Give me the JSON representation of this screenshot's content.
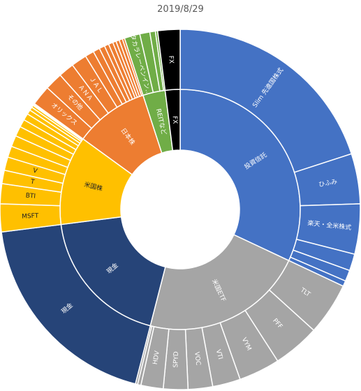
{
  "chart_data": {
    "type": "sunburst",
    "title": "2019/8/29",
    "colors": {
      "toushin": "#4472C4",
      "beikoku_etf": "#A5A5A5",
      "genkin": "#264478",
      "beikoku_kabu": "#FFC000",
      "nihon_kabu": "#ED7D31",
      "reit": "#70AD47",
      "fx": "#000000",
      "border": "#FFFFFF"
    },
    "inner": [
      {
        "label": "投資信託",
        "value": 32.0,
        "color_key": "toushin"
      },
      {
        "label": "米国ETF",
        "value": 22.0,
        "color_key": "beikoku_etf"
      },
      {
        "label": "現金",
        "value": 19.0,
        "color_key": "genkin"
      },
      {
        "label": "米国株",
        "value": 12.0,
        "color_key": "beikoku_kabu"
      },
      {
        "label": "日本株",
        "value": 10.0,
        "color_key": "nihon_kabu"
      },
      {
        "label": "REITなど",
        "value": 3.0,
        "color_key": "reit"
      },
      {
        "label": "FX",
        "value": 2.0,
        "color_key": "fx"
      }
    ],
    "outer": [
      {
        "label": "Slim 先進国株式",
        "value": 20.0,
        "parent": "投資信託"
      },
      {
        "label": "ひふみ",
        "value": 4.5,
        "parent": "投資信託"
      },
      {
        "label": "楽天・全米株式",
        "value": 4.5,
        "parent": "投資信託"
      },
      {
        "label": "",
        "value": 1.5,
        "parent": "投資信託"
      },
      {
        "label": "",
        "value": 1.0,
        "parent": "投資信託"
      },
      {
        "label": "",
        "value": 0.5,
        "parent": "投資信託"
      },
      {
        "label": "TLT",
        "value": 4.7,
        "parent": "米国ETF"
      },
      {
        "label": "PFF",
        "value": 4.2,
        "parent": "米国ETF"
      },
      {
        "label": "VYM",
        "value": 3.7,
        "parent": "米国ETF"
      },
      {
        "label": "VTI",
        "value": 2.5,
        "parent": "米国ETF"
      },
      {
        "label": "VOC",
        "value": 2.2,
        "parent": "米国ETF"
      },
      {
        "label": "SPYD",
        "value": 2.2,
        "parent": "米国ETF"
      },
      {
        "label": "HDV",
        "value": 2.0,
        "parent": "米国ETF"
      },
      {
        "label": "",
        "value": 0.3,
        "parent": "米国ETF"
      },
      {
        "label": "",
        "value": 0.2,
        "parent": "米国ETF"
      },
      {
        "label": "現金",
        "value": 19.0,
        "parent": "現金"
      },
      {
        "label": "MSFT",
        "value": 2.5,
        "parent": "米国株"
      },
      {
        "label": "BTI",
        "value": 1.8,
        "parent": "米国株"
      },
      {
        "label": "T",
        "value": 1.2,
        "parent": "米国株"
      },
      {
        "label": "V",
        "value": 1.2,
        "parent": "米国株"
      },
      {
        "label": "",
        "value": 1.0,
        "parent": "米国株"
      },
      {
        "label": "",
        "value": 1.0,
        "parent": "米国株"
      },
      {
        "label": "",
        "value": 0.9,
        "parent": "米国株"
      },
      {
        "label": "",
        "value": 0.7,
        "parent": "米国株"
      },
      {
        "label": "",
        "value": 0.6,
        "parent": "米国株"
      },
      {
        "label": "",
        "value": 0.4,
        "parent": "米国株"
      },
      {
        "label": "",
        "value": 0.3,
        "parent": "米国株"
      },
      {
        "label": "",
        "value": 0.2,
        "parent": "米国株"
      },
      {
        "label": "",
        "value": 0.1,
        "parent": "米国株"
      },
      {
        "label": "",
        "value": 0.1,
        "parent": "米国株"
      },
      {
        "label": "オリックス",
        "value": 1.8,
        "parent": "日本株"
      },
      {
        "label": "その他",
        "value": 1.6,
        "parent": "日本株"
      },
      {
        "label": "ＡＮＡ",
        "value": 1.4,
        "parent": "日本株"
      },
      {
        "label": "ＪＡＬ",
        "value": 1.4,
        "parent": "日本株"
      },
      {
        "label": "",
        "value": 0.8,
        "parent": "日本株"
      },
      {
        "label": "",
        "value": 0.6,
        "parent": "日本株"
      },
      {
        "label": "",
        "value": 0.5,
        "parent": "日本株"
      },
      {
        "label": "",
        "value": 0.4,
        "parent": "日本株"
      },
      {
        "label": "",
        "value": 0.4,
        "parent": "日本株"
      },
      {
        "label": "",
        "value": 0.3,
        "parent": "日本株"
      },
      {
        "label": "",
        "value": 0.3,
        "parent": "日本株"
      },
      {
        "label": "",
        "value": 0.3,
        "parent": "日本株"
      },
      {
        "label": "",
        "value": 0.2,
        "parent": "日本株"
      },
      {
        "label": "タカラレーベンイン...",
        "value": 1.4,
        "parent": "REITなど"
      },
      {
        "label": "",
        "value": 0.9,
        "parent": "REITなど"
      },
      {
        "label": "",
        "value": 0.5,
        "parent": "REITなど"
      },
      {
        "label": "",
        "value": 0.2,
        "parent": "REITなど"
      },
      {
        "label": "FX",
        "value": 2.0,
        "parent": "FX"
      }
    ]
  }
}
